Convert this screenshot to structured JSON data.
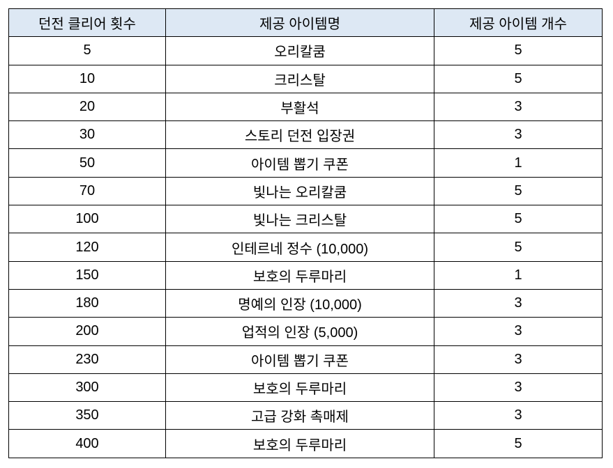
{
  "table": {
    "headers": [
      "던전 클리어 횟수",
      "제공 아이템명",
      "제공 아이템 개수"
    ],
    "header_bg": "#dde8f4",
    "rows": [
      [
        "5",
        "오리칼쿰",
        "5"
      ],
      [
        "10",
        "크리스탈",
        "5"
      ],
      [
        "20",
        "부활석",
        "3"
      ],
      [
        "30",
        "스토리 던전 입장권",
        "3"
      ],
      [
        "50",
        "아이템 뽑기 쿠폰",
        "1"
      ],
      [
        "70",
        "빛나는 오리칼쿰",
        "5"
      ],
      [
        "100",
        "빛나는 크리스탈",
        "5"
      ],
      [
        "120",
        "인테르네 정수 (10,000)",
        "5"
      ],
      [
        "150",
        "보호의 두루마리",
        "1"
      ],
      [
        "180",
        "명예의 인장 (10,000)",
        "3"
      ],
      [
        "200",
        "업적의 인장 (5,000)",
        "3"
      ],
      [
        "230",
        "아이템 뽑기 쿠폰",
        "3"
      ],
      [
        "300",
        "보호의 두루마리",
        "3"
      ],
      [
        "350",
        "고급 강화 촉매제",
        "3"
      ],
      [
        "400",
        "보호의 두루마리",
        "5"
      ]
    ]
  }
}
